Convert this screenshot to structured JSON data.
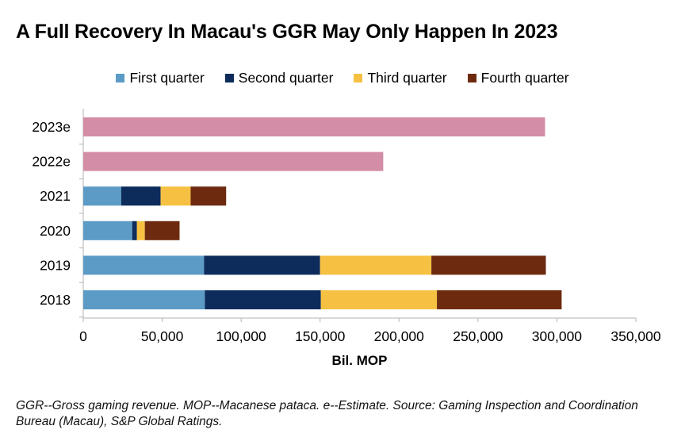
{
  "title": "A Full Recovery In Macau's GGR May Only Happen In 2023",
  "legend": [
    {
      "label": "First quarter",
      "color": "#5b9bc5"
    },
    {
      "label": "Second quarter",
      "color": "#0d2c5c"
    },
    {
      "label": "Third quarter",
      "color": "#f6c143"
    },
    {
      "label": "Fourth quarter",
      "color": "#6d2a0f"
    }
  ],
  "footnote": "GGR--Gross gaming revenue. MOP--Macanese pataca. e--Estimate.  Source: Gaming Inspection and Coordination Bureau (Macau), S&P Global Ratings.",
  "chart_data": {
    "type": "bar",
    "orientation": "horizontal",
    "stacked": true,
    "title": "A Full Recovery In Macau's GGR May Only Happen In 2023",
    "xlabel": "Bil. MOP",
    "ylabel": "",
    "xlim": [
      0,
      350000
    ],
    "xticks": [
      0,
      50000,
      100000,
      150000,
      200000,
      250000,
      300000,
      350000
    ],
    "xtick_labels": [
      "0",
      "50,000",
      "100,000",
      "150,000",
      "200,000",
      "250,000",
      "300,000",
      "350,000"
    ],
    "grid": false,
    "legend_position": "top",
    "categories": [
      "2023e",
      "2022e",
      "2021",
      "2020",
      "2019",
      "2018"
    ],
    "series": [
      {
        "name": "First quarter",
        "color": "#5b9bc5",
        "values": [
          null,
          null,
          24000,
          31000,
          76500,
          77000
        ]
      },
      {
        "name": "Second quarter",
        "color": "#0d2c5c",
        "values": [
          null,
          null,
          25000,
          3000,
          73500,
          73500
        ]
      },
      {
        "name": "Third quarter",
        "color": "#f6c143",
        "values": [
          null,
          null,
          19000,
          5000,
          70500,
          73500
        ]
      },
      {
        "name": "Fourth quarter",
        "color": "#6d2a0f",
        "values": [
          null,
          null,
          22500,
          22000,
          72500,
          79000
        ]
      },
      {
        "name": "Annual estimate",
        "color": "#d48da6",
        "show_in_legend": false,
        "values": [
          292500,
          190000,
          null,
          null,
          null,
          null
        ]
      }
    ]
  }
}
